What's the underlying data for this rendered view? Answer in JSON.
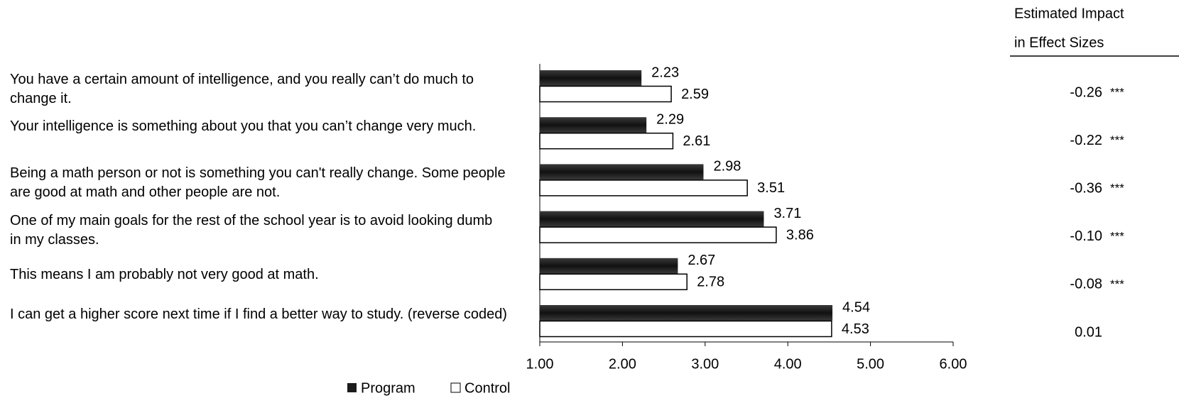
{
  "chart_data": {
    "type": "bar",
    "orientation": "horizontal",
    "categories": [
      "You have a certain amount of intelligence, and you really can’t do much to change it.",
      "Your intelligence is something about you that you can’t change very much.",
      "Being a math person or not is something you can't really change. Some people are good at math and other people are not.",
      "One of my main goals for the rest of the school year is to avoid looking dumb in my classes.",
      "This means I am probably not very good at math.",
      "I can get a higher score next time if I find a better way to study. (reverse coded)"
    ],
    "series": [
      {
        "name": "Program",
        "color": "#1c1c1c",
        "values": [
          2.23,
          2.29,
          2.98,
          3.71,
          2.67,
          4.54
        ]
      },
      {
        "name": "Control",
        "color": "#ffffff",
        "values": [
          2.59,
          2.61,
          3.51,
          3.86,
          2.78,
          4.53
        ]
      }
    ],
    "xlim": [
      1,
      6
    ],
    "xticks": [
      {
        "value": 1,
        "label": "1.00"
      },
      {
        "value": 2,
        "label": "2.00"
      },
      {
        "value": 3,
        "label": "3.00"
      },
      {
        "value": 4,
        "label": "4.00"
      },
      {
        "value": 5,
        "label": "5.00"
      },
      {
        "value": 6,
        "label": "6.00"
      }
    ],
    "effect_header": [
      "Estimated Impact",
      "in Effect Sizes"
    ],
    "effect_sizes": {
      "values": [
        -0.26,
        -0.22,
        -0.36,
        -0.1,
        -0.08,
        0.01
      ],
      "value_labels": [
        "-0.26",
        "-0.22",
        "-0.36",
        "-0.10",
        "-0.08",
        "0.01"
      ],
      "significance": [
        "***",
        "***",
        "***",
        "***",
        "***",
        null
      ]
    },
    "legend": "bottom"
  }
}
